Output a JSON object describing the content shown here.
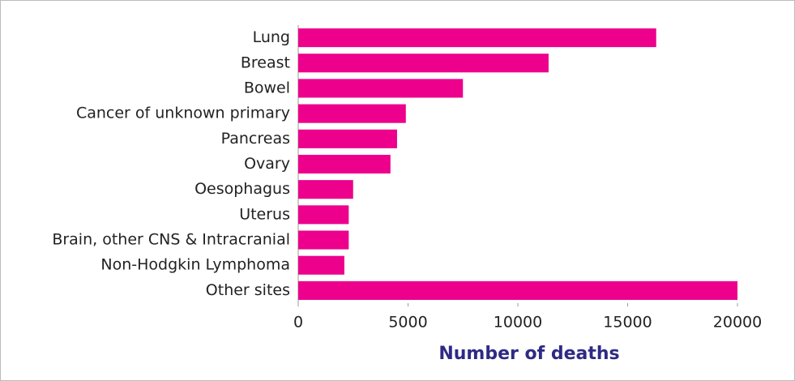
{
  "chart_data": {
    "type": "bar",
    "orientation": "horizontal",
    "xlabel": "Number of deaths",
    "categories": [
      "Lung",
      "Breast",
      "Bowel",
      "Cancer of unknown primary",
      "Pancreas",
      "Ovary",
      "Oesophagus",
      "Uterus",
      "Brain, other CNS & Intracranial",
      "Non-Hodgkin Lymphoma",
      "Other sites"
    ],
    "values": [
      16300,
      11400,
      7500,
      4900,
      4500,
      4200,
      2500,
      2300,
      2300,
      2100,
      20000
    ],
    "color": "#ec008c",
    "xlim": [
      0,
      20000
    ],
    "xticks": [
      0,
      5000,
      10000,
      15000,
      20000
    ],
    "grid": false
  }
}
